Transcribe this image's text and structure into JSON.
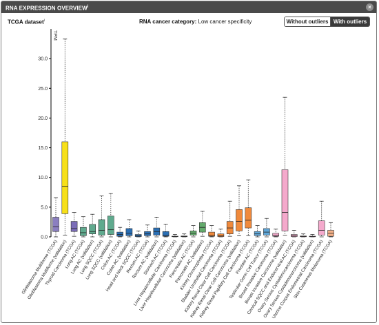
{
  "header": {
    "title": "RNA EXPRESSION OVERVIEW",
    "info_mark": "i",
    "close_label": "×"
  },
  "dataset": {
    "label": "TCGA dataset",
    "info_mark": "i"
  },
  "category": {
    "label": "RNA cancer category:",
    "value": "Low cancer specificity"
  },
  "toggle": {
    "off_label": "Without outliers",
    "on_label": "With outliers"
  },
  "chart_data": {
    "type": "box",
    "ylabel": "TPM",
    "ylim": [
      0,
      35
    ],
    "yticks": [
      0,
      5,
      10,
      15,
      20,
      25,
      30
    ],
    "grid": false,
    "series": [
      {
        "label": "Glioblastoma Multiforme (TCGA)",
        "color": "#8b7fc0",
        "min": 0,
        "q1": 0.9,
        "median": 1.7,
        "q3": 3.3,
        "max": 6.6
      },
      {
        "label": "Glioblastoma Multiforme (validation)",
        "color": "#f7e01a",
        "min": 0.3,
        "q1": 3.9,
        "median": 8.5,
        "q3": 16.0,
        "max": 33.3
      },
      {
        "label": "Thyroid Carcinoma (TCGA)",
        "color": "#7b6db8",
        "min": 0.1,
        "q1": 0.9,
        "median": 1.4,
        "q3": 2.6,
        "max": 4.1
      },
      {
        "label": "Lung AC (TCGA)",
        "color": "#5faa8e",
        "min": 0,
        "q1": 0.2,
        "median": 0.7,
        "q3": 1.6,
        "max": 3.4
      },
      {
        "label": "Lung AC (validation)",
        "color": "#5faa8e",
        "min": 0,
        "q1": 0.5,
        "median": 0.9,
        "q3": 2.1,
        "max": 3.8
      },
      {
        "label": "Lung SQCC (TCGA)",
        "color": "#5faa8e",
        "min": 0,
        "q1": 0.3,
        "median": 1.1,
        "q3": 2.9,
        "max": 6.9
      },
      {
        "label": "Lung SQCC (validation)",
        "color": "#5faa8e",
        "min": 0,
        "q1": 0.4,
        "median": 1.2,
        "q3": 3.5,
        "max": 7.3
      },
      {
        "label": "Colon AC (TCGA)",
        "color": "#2a6fb5",
        "min": 0,
        "q1": 0.1,
        "median": 0.4,
        "q3": 0.8,
        "max": 1.6
      },
      {
        "label": "Colon AC (validation)",
        "color": "#2a6fb5",
        "min": 0,
        "q1": 0.2,
        "median": 0.6,
        "q3": 1.4,
        "max": 2.9
      },
      {
        "label": "Head and Neck SQCC (TCGA)",
        "color": "#2a6fb5",
        "min": 0,
        "q1": 0.05,
        "median": 0.15,
        "q3": 0.4,
        "max": 1.0
      },
      {
        "label": "Rectum AC (TCGA)",
        "color": "#2a6fb5",
        "min": 0,
        "q1": 0.2,
        "median": 0.5,
        "q3": 0.9,
        "max": 2.0
      },
      {
        "label": "Rectum AC (validation)",
        "color": "#2a6fb5",
        "min": 0,
        "q1": 0.3,
        "median": 0.9,
        "q3": 1.5,
        "max": 3.3
      },
      {
        "label": "Stomach AC (TCGA)",
        "color": "#2a6fb5",
        "min": 0,
        "q1": 0.1,
        "median": 0.3,
        "q3": 0.9,
        "max": 2.1
      },
      {
        "label": "Liver Hepatocellular Carcinoma (TCGA)",
        "color": "#9a9a9a",
        "min": 0,
        "q1": 0.02,
        "median": 0.05,
        "q3": 0.12,
        "max": 0.4
      },
      {
        "label": "Liver Hepatocellular Carcinoma (validation)",
        "color": "#9a9a9a",
        "min": 0,
        "q1": 0.02,
        "median": 0.06,
        "q3": 0.15,
        "max": 0.5
      },
      {
        "label": "Pancreatic AC (TCGA)",
        "color": "#63ab6c",
        "min": 0,
        "q1": 0.3,
        "median": 0.6,
        "q3": 1.0,
        "max": 1.9
      },
      {
        "label": "Pancreatic AC (validation)",
        "color": "#63ab6c",
        "min": 0.1,
        "q1": 0.8,
        "median": 1.6,
        "q3": 2.4,
        "max": 4.3
      },
      {
        "label": "Kidney Chromophobe (TCGA)",
        "color": "#f08a3c",
        "min": 0,
        "q1": 0.1,
        "median": 0.3,
        "q3": 0.8,
        "max": 1.9
      },
      {
        "label": "Bladder Urothelial Carcinoma (TCGA)",
        "color": "#f08a3c",
        "min": 0,
        "q1": 0.05,
        "median": 0.2,
        "q3": 0.5,
        "max": 1.3
      },
      {
        "label": "Kidney Renal Clear Cell Carcinoma (TCGA)",
        "color": "#f08a3c",
        "min": 0.1,
        "q1": 0.5,
        "median": 1.5,
        "q3": 2.6,
        "max": 6.0
      },
      {
        "label": "Kidney Renal Clear Cell Carcinoma (validation)",
        "color": "#f08a3c",
        "min": 0.2,
        "q1": 1.0,
        "median": 2.6,
        "q3": 4.6,
        "max": 8.6
      },
      {
        "label": "Kidney Renal Papillary Cell Carcinoma (TCGA)",
        "color": "#f08a3c",
        "min": 0.2,
        "q1": 1.5,
        "median": 2.8,
        "q3": 4.9,
        "max": 9.6
      },
      {
        "label": "Prostate AC (TCGA)",
        "color": "#5fa6d8",
        "min": 0,
        "q1": 0.2,
        "median": 0.5,
        "q3": 0.9,
        "max": 1.9
      },
      {
        "label": "Testicular Germ Cell Tumor (TCGA)",
        "color": "#5fa6d8",
        "min": 0,
        "q1": 0.3,
        "median": 0.8,
        "q3": 1.4,
        "max": 3.1
      },
      {
        "label": "Breast Invasive Carcinoma (TCGA)",
        "color": "#f4a9cc",
        "min": 0,
        "q1": 0.1,
        "median": 0.3,
        "q3": 0.6,
        "max": 1.3
      },
      {
        "label": "Breast Invasive Carcinoma (validation)",
        "color": "#f4a9cc",
        "min": 0.3,
        "q1": 1.0,
        "median": 4.1,
        "q3": 11.3,
        "max": 23.5
      },
      {
        "label": "Cervical SQCC and Endocervical AC (TCGA)",
        "color": "#f4a9cc",
        "min": 0,
        "q1": 0.05,
        "median": 0.2,
        "q3": 0.4,
        "max": 1.1
      },
      {
        "label": "Ovary Serous Cystadenocarcinoma (TCGA)",
        "color": "#f4a9cc",
        "min": 0,
        "q1": 0.02,
        "median": 0.06,
        "q3": 0.15,
        "max": 0.5
      },
      {
        "label": "Ovary Serous Cystadenocarcinoma (validation)",
        "color": "#f4a9cc",
        "min": 0,
        "q1": 0.02,
        "median": 0.05,
        "q3": 0.12,
        "max": 0.4
      },
      {
        "label": "Uterine Corpus Endometrial Carcinoma (TCGA)",
        "color": "#f4a9cc",
        "min": 0,
        "q1": 0.3,
        "median": 1.1,
        "q3": 2.7,
        "max": 6.0
      },
      {
        "label": "Skin Cutaneous Melanoma (TCGA)",
        "color": "#f4b088",
        "min": 0,
        "q1": 0.1,
        "median": 0.6,
        "q3": 1.1,
        "max": 2.4
      }
    ]
  }
}
